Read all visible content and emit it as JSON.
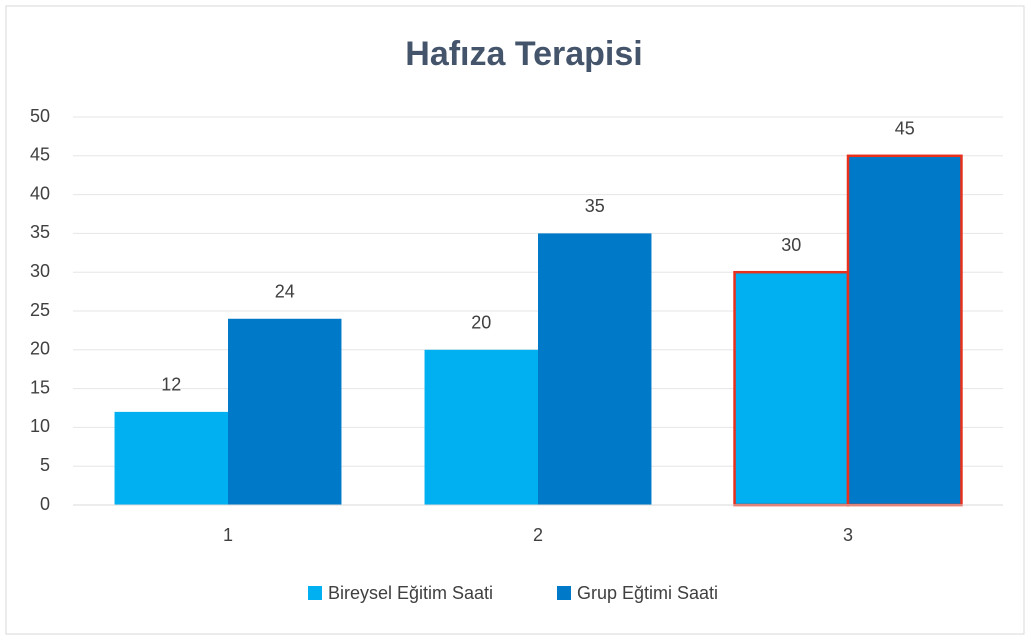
{
  "chart_data": {
    "type": "bar",
    "title": "Hafıza Terapisi",
    "categories": [
      "1",
      "2",
      "3"
    ],
    "series": [
      {
        "name": "Bireysel Eğitim Saati",
        "color": "#00b0f0",
        "values": [
          12,
          20,
          30
        ]
      },
      {
        "name": "Grup Eğtimi Saati",
        "color": "#007ac8",
        "values": [
          24,
          35,
          45
        ]
      }
    ],
    "ylim": [
      0,
      50
    ],
    "yticks": [
      0,
      5,
      10,
      15,
      20,
      25,
      30,
      35,
      40,
      45,
      50
    ],
    "grid": true,
    "legend": "bottom",
    "highlight": {
      "category": "3",
      "color": "#e8301c"
    }
  }
}
